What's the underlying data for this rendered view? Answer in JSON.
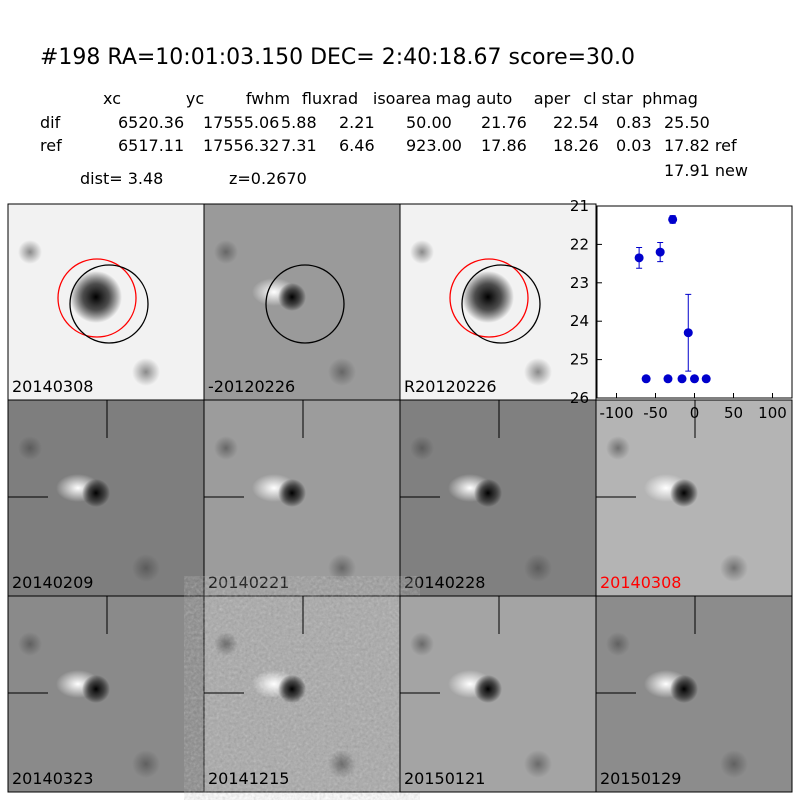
{
  "header": {
    "title": "#198   RA=10:01:03.150 DEC= 2:40:18.67       score=30.0"
  },
  "table": {
    "columns": [
      "xc",
      "yc",
      "fwhm",
      "fluxrad",
      "isoarea",
      "mag auto",
      "aper",
      "cl star",
      "phmag"
    ],
    "rows": [
      [
        "dif",
        "6520.36",
        "17555.06",
        "5.88",
        "2.21",
        "50.00",
        "21.76",
        "22.54",
        "0.83",
        "25.50"
      ],
      [
        "ref",
        "6517.11",
        "17556.32",
        "7.31",
        "6.46",
        "923.00",
        "17.86",
        "18.26",
        "0.03",
        "17.82 ref"
      ]
    ],
    "extra": "17.91 new",
    "dist": "dist=  3.48",
    "z": "z=0.2670"
  },
  "stamps": [
    "20140308",
    "-20120226",
    "R20120226",
    "20140209",
    "20140221",
    "20140228",
    "20140308",
    "20140323",
    "20141215",
    "20150121",
    "20150129"
  ],
  "chart_data": {
    "type": "scatter",
    "x": [
      -71,
      -62,
      -44,
      -34,
      -28,
      -16,
      -8,
      0,
      15
    ],
    "values": [
      22.35,
      25.5,
      22.2,
      25.5,
      21.35,
      25.5,
      24.3,
      25.5,
      25.5
    ],
    "errors": [
      0.27,
      null,
      0.25,
      null,
      0.1,
      null,
      1.0,
      null,
      null
    ],
    "color": "#0000cc",
    "xlim": [
      -125,
      125
    ],
    "ylim": [
      26,
      21
    ],
    "xticks": [
      -100,
      -50,
      0,
      50,
      100
    ],
    "yticks": [
      21,
      22,
      23,
      24,
      25,
      26
    ]
  }
}
